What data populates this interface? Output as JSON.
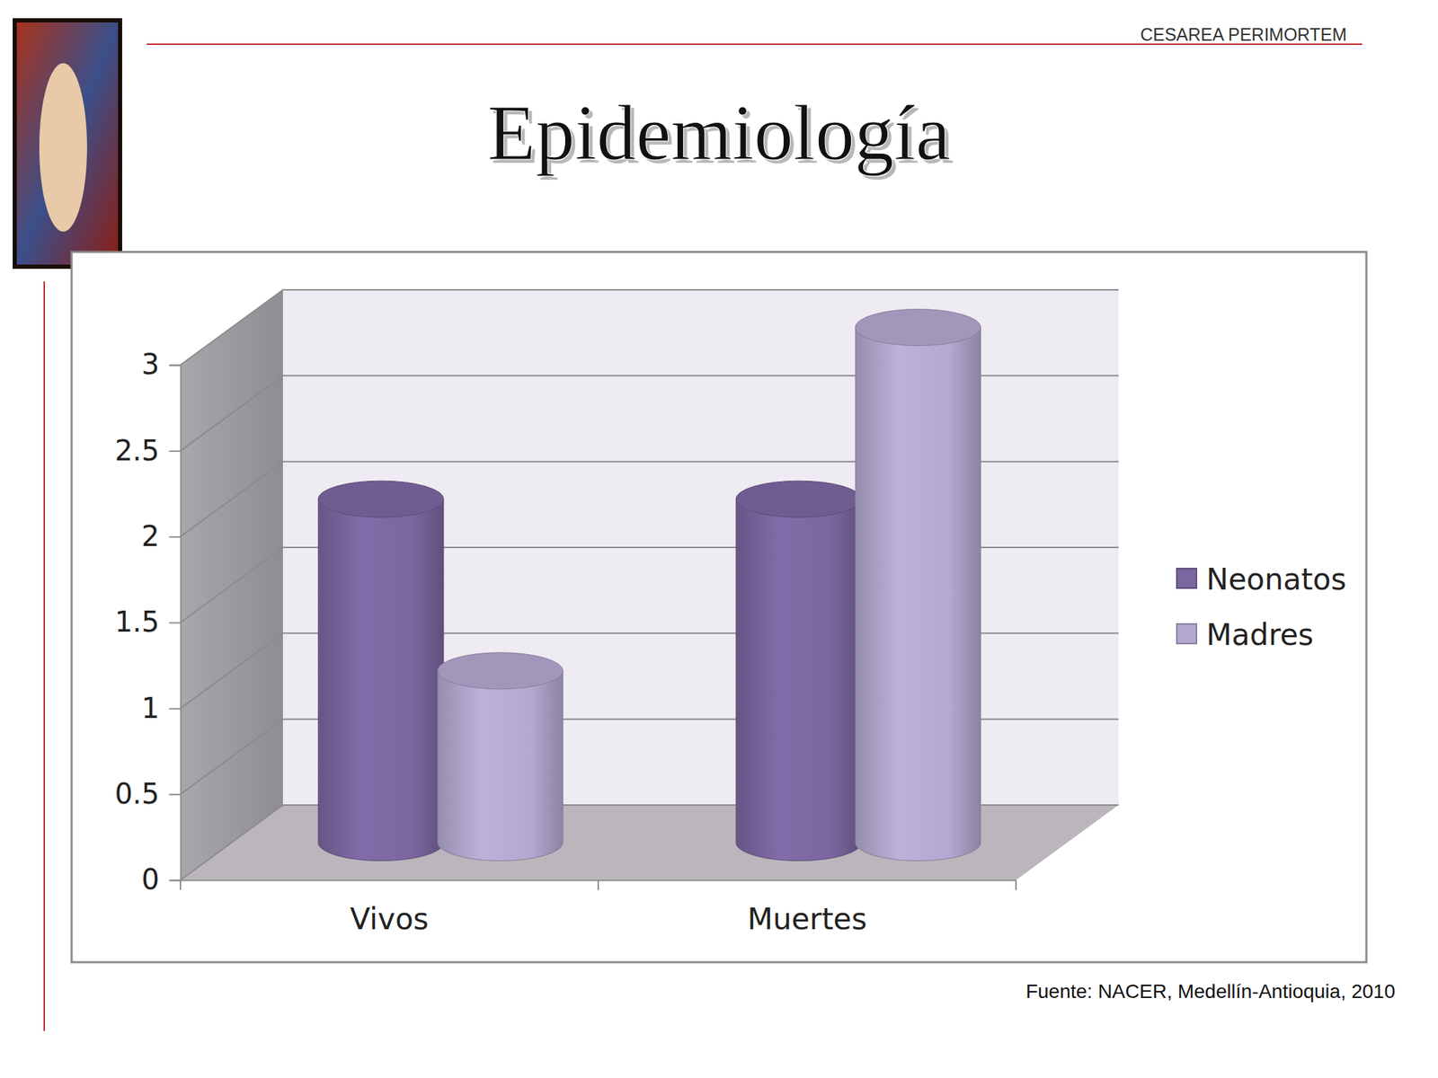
{
  "header": "CESAREA PERIMORTEM",
  "source": "Fuente: NACER, Medellín-Antioquia, 2010",
  "chart_data": {
    "type": "bar",
    "title": "Epidemiología",
    "categories": [
      "Vivos",
      "Muertes"
    ],
    "series": [
      {
        "name": "Neonatos",
        "color": "#7b66a0",
        "values": [
          2,
          2
        ]
      },
      {
        "name": "Madres",
        "color": "#b3a8cf",
        "values": [
          1,
          3
        ]
      }
    ],
    "ylim": [
      0,
      3
    ],
    "yticks": [
      0,
      0.5,
      1,
      1.5,
      2,
      2.5,
      3
    ],
    "grid": true,
    "legend": "right"
  }
}
